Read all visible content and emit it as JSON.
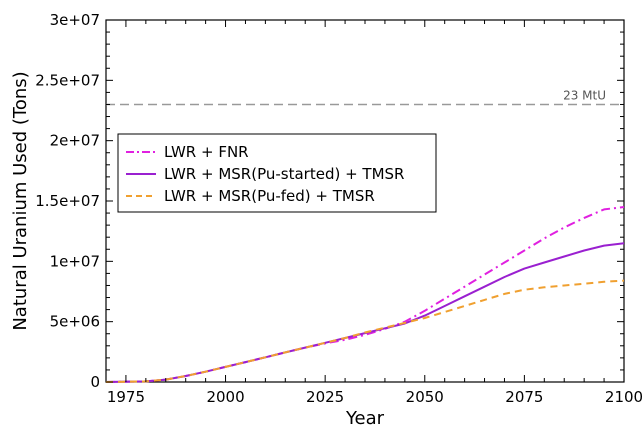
{
  "chart_data": {
    "type": "line",
    "xlabel": "Year",
    "ylabel": "Natural Uranium Used (Tons)",
    "xlim": [
      1970,
      2100
    ],
    "ylim": [
      0,
      30000000
    ],
    "xticks": [
      1975,
      2000,
      2025,
      2050,
      2075,
      2100
    ],
    "xtick_labels": [
      "1975",
      "2000",
      "2025",
      "2050",
      "2075",
      "2100"
    ],
    "yticks": [
      0,
      5000000,
      10000000,
      15000000,
      20000000,
      25000000,
      30000000
    ],
    "ytick_labels": [
      "0",
      "5e+06",
      "1e+07",
      "1.5e+07",
      "2e+07",
      "2.5e+07",
      "3e+07"
    ],
    "grid": false,
    "legend_position": "upper-left",
    "reference_line": {
      "y": 23000000,
      "label": "23 MtU",
      "color": "#999999"
    },
    "series": [
      {
        "name": "LWR + FNR",
        "color": "#e020e0",
        "style": "dashdot",
        "x": [
          1970,
          1980,
          1985,
          1990,
          1995,
          2000,
          2005,
          2010,
          2015,
          2020,
          2025,
          2030,
          2035,
          2040,
          2045,
          2050,
          2055,
          2060,
          2065,
          2070,
          2075,
          2080,
          2085,
          2090,
          2095,
          2100
        ],
        "y": [
          0,
          50000,
          200000,
          500000,
          850000,
          1250000,
          1650000,
          2050000,
          2450000,
          2850000,
          3200000,
          3500000,
          3900000,
          4400000,
          5000000,
          5900000,
          6900000,
          7900000,
          8900000,
          9900000,
          10900000,
          11900000,
          12800000,
          13600000,
          14300000,
          14500000
        ]
      },
      {
        "name": "LWR + MSR(Pu-started) + TMSR",
        "color": "#9a20d0",
        "style": "solid",
        "x": [
          1970,
          1980,
          1985,
          1990,
          1995,
          2000,
          2005,
          2010,
          2015,
          2020,
          2025,
          2030,
          2035,
          2040,
          2045,
          2050,
          2055,
          2060,
          2065,
          2070,
          2075,
          2080,
          2085,
          2090,
          2095,
          2100
        ],
        "y": [
          0,
          50000,
          200000,
          500000,
          850000,
          1250000,
          1650000,
          2050000,
          2450000,
          2850000,
          3250000,
          3650000,
          4050000,
          4450000,
          4850000,
          5500000,
          6300000,
          7100000,
          7900000,
          8700000,
          9400000,
          9900000,
          10400000,
          10900000,
          11300000,
          11500000
        ]
      },
      {
        "name": "LWR + MSR(Pu-fed) + TMSR",
        "color": "#f0a030",
        "style": "dashed",
        "x": [
          1970,
          1980,
          1985,
          1990,
          1995,
          2000,
          2005,
          2010,
          2015,
          2020,
          2025,
          2030,
          2035,
          2040,
          2045,
          2050,
          2055,
          2060,
          2065,
          2070,
          2075,
          2080,
          2085,
          2090,
          2095,
          2100
        ],
        "y": [
          0,
          50000,
          200000,
          500000,
          850000,
          1250000,
          1650000,
          2050000,
          2450000,
          2850000,
          3250000,
          3650000,
          4100000,
          4500000,
          4900000,
          5300000,
          5800000,
          6300000,
          6800000,
          7300000,
          7650000,
          7850000,
          8000000,
          8150000,
          8300000,
          8400000
        ]
      }
    ]
  }
}
